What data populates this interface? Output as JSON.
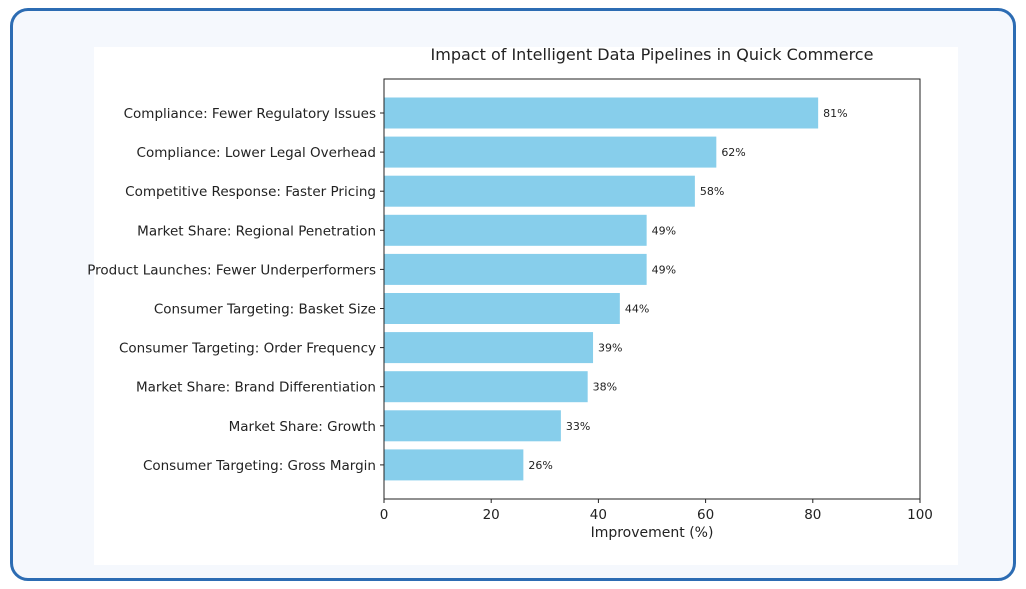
{
  "chart_data": {
    "type": "bar",
    "orientation": "horizontal",
    "title": "Impact of Intelligent Data Pipelines in Quick Commerce",
    "xlabel": "Improvement (%)",
    "ylabel": "",
    "xlim": [
      0,
      100
    ],
    "xticks": [
      "0",
      "20",
      "40",
      "60",
      "80",
      "100"
    ],
    "grid": false,
    "bar_color": "#87ceeb",
    "value_suffix": "%",
    "categories": [
      "Compliance: Fewer Regulatory Issues",
      "Compliance: Lower Legal Overhead",
      "Competitive Response: Faster Pricing",
      "Market Share: Regional Penetration",
      "Product Launches: Fewer Underperformers",
      "Consumer Targeting: Basket Size",
      "Consumer Targeting: Order Frequency",
      "Market Share: Brand Differentiation",
      "Market Share: Growth",
      "Consumer Targeting: Gross Margin"
    ],
    "values": [
      81,
      62,
      58,
      49,
      49,
      44,
      39,
      38,
      33,
      26
    ],
    "data_labels": [
      "81%",
      "62%",
      "58%",
      "49%",
      "49%",
      "44%",
      "39%",
      "38%",
      "33%",
      "26%"
    ]
  },
  "colors": {
    "frame_border": "#2c6cb3",
    "frame_background": "#f5f8fd",
    "bar": "#87ceeb"
  }
}
